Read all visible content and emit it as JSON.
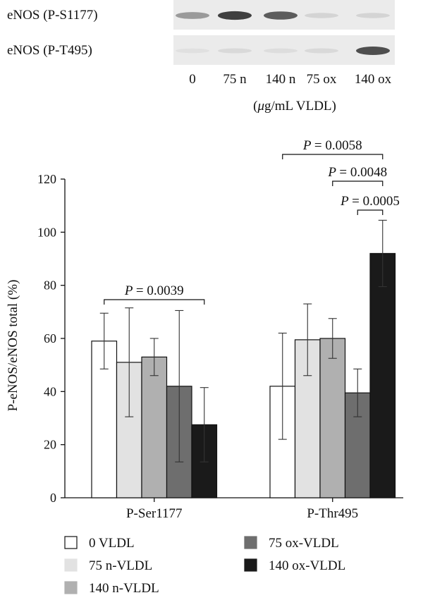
{
  "blot": {
    "rows": [
      {
        "label": "eNOS (P-S1177)",
        "intensity": [
          0.55,
          0.9,
          0.8,
          0.2,
          0.2
        ]
      },
      {
        "label": "eNOS (P-T495)",
        "intensity": [
          0.08,
          0.15,
          0.12,
          0.15,
          0.85
        ]
      }
    ],
    "lanes": [
      "0",
      "75 n",
      "140 n",
      "75 ox",
      "140 ox"
    ],
    "units_prefix": "(",
    "units_mu": "μ",
    "units_rest": "g/mL VLDL)"
  },
  "chart_data": {
    "type": "bar",
    "categories": [
      "P-Ser1177",
      "P-Thr495"
    ],
    "ylabel": "P-eNOS/eNOS total (%)",
    "ylim": [
      0,
      120
    ],
    "yticks": [
      0,
      20,
      40,
      60,
      80,
      100,
      120
    ],
    "grid": false,
    "legend_position": "bottom",
    "series": [
      {
        "name": "0 VLDL",
        "color": "#ffffff",
        "values": [
          59,
          42
        ],
        "errors": [
          10.5,
          20
        ]
      },
      {
        "name": "75 n-VLDL",
        "color": "#e2e2e2",
        "values": [
          51,
          59.5
        ],
        "errors": [
          20.5,
          13.5
        ]
      },
      {
        "name": "140 n-VLDL",
        "color": "#b0b0b0",
        "values": [
          53,
          60
        ],
        "errors": [
          7,
          7.5
        ]
      },
      {
        "name": "75 ox-VLDL",
        "color": "#6e6e6e",
        "values": [
          42,
          39.5
        ],
        "errors": [
          28.5,
          9
        ]
      },
      {
        "name": "140 ox-VLDL",
        "color": "#1a1a1a",
        "values": [
          27.5,
          92
        ],
        "errors": [
          14,
          12.5
        ]
      }
    ],
    "annotations": [
      {
        "category": 0,
        "from_series": 0,
        "to_series": 4,
        "label": "= 0.0039",
        "level": 4
      },
      {
        "category": 1,
        "from_series": 3,
        "to_series": 4,
        "label": "= 0.0005",
        "level": 1
      },
      {
        "category": 1,
        "from_series": 2,
        "to_series": 4,
        "label": "= 0.0048",
        "level": 2
      },
      {
        "category": 1,
        "from_series": 0,
        "to_series": 4,
        "label": "= 0.0058",
        "level": 3
      }
    ],
    "p_symbol": "P"
  }
}
